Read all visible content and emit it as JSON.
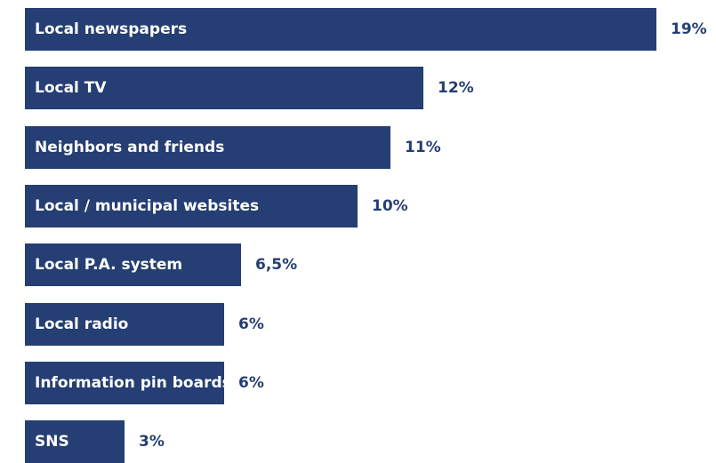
{
  "chart_data": {
    "type": "bar",
    "orientation": "horizontal",
    "categories": [
      "Local newspapers",
      "Local TV",
      "Neighbors and friends",
      "Local / municipal websites",
      "Local P.A. system",
      "Local radio",
      "Information pin boards",
      "SNS"
    ],
    "values": [
      19,
      12,
      11,
      10,
      6.5,
      6,
      6,
      3
    ],
    "value_labels": [
      "19%",
      "12%",
      "11%",
      "10%",
      "6,5%",
      "6%",
      "6%",
      "3%"
    ],
    "title": "",
    "xlabel": "",
    "ylabel": "",
    "xlim": [
      0,
      19
    ],
    "grid": false,
    "legend": "none",
    "bar_color": "#253e73",
    "label_text_color": "#ffffff",
    "value_text_color": "#253e73"
  }
}
